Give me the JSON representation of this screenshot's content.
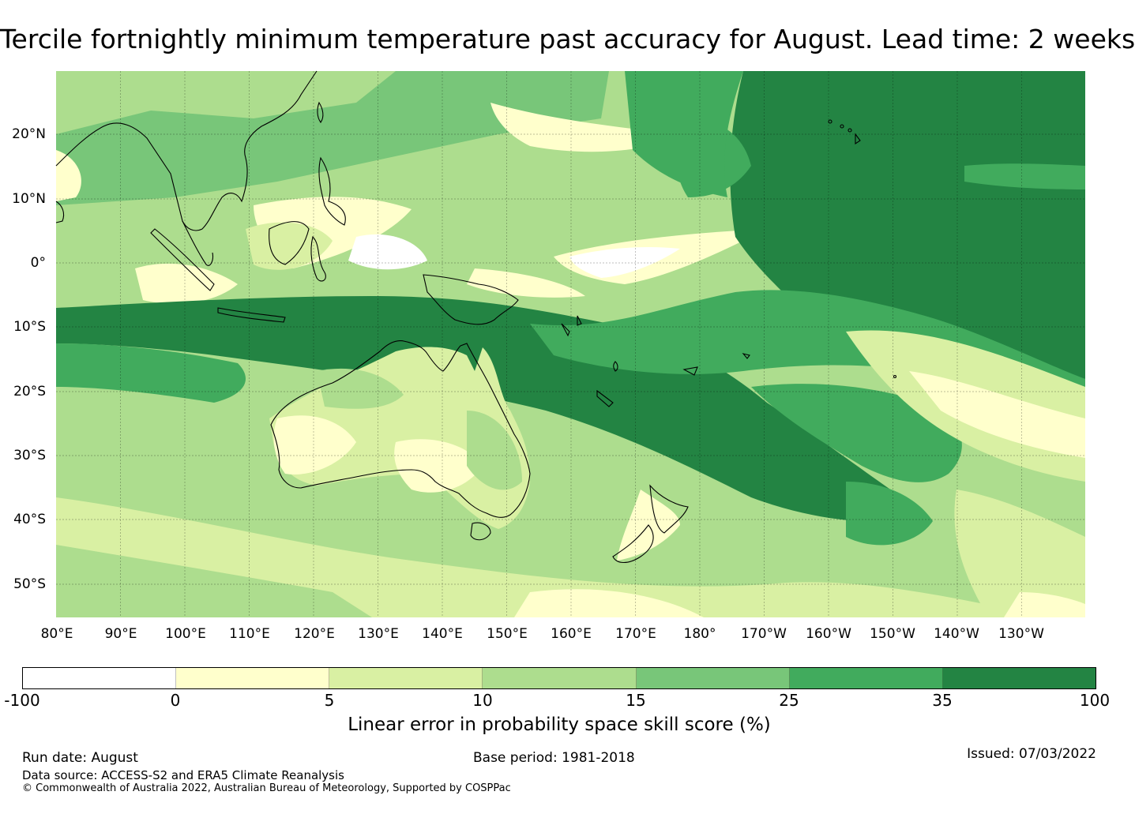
{
  "title": "Tercile fortnightly minimum temperature past accuracy for August. Lead time: 2 weeks",
  "map": {
    "projection": "plate-carree",
    "lon_range": [
      80,
      240
    ],
    "lat_range": [
      -55,
      30
    ],
    "lat_labels": [
      "20°N",
      "10°N",
      "0°",
      "10°S",
      "20°S",
      "30°S",
      "40°S",
      "50°S"
    ],
    "lon_labels": [
      "80°E",
      "90°E",
      "100°E",
      "110°E",
      "120°E",
      "130°E",
      "140°E",
      "150°E",
      "160°E",
      "170°E",
      "180°",
      "170°W",
      "160°W",
      "150°W",
      "140°W",
      "130°W"
    ],
    "gridlines": true,
    "coastline_color": "#000000"
  },
  "colorbar": {
    "ticks": [
      "-100",
      "0",
      "5",
      "10",
      "15",
      "25",
      "35",
      "100"
    ],
    "colors": [
      "#ffffff",
      "#ffffcc",
      "#d9f0a3",
      "#addd8e",
      "#78c679",
      "#41ab5d",
      "#238443"
    ],
    "label": "Linear error in probability space skill score (%)"
  },
  "footer": {
    "run_date": "Run date: August",
    "base_period": "Base period: 1981-2018",
    "issued": "Issued: 07/03/2022",
    "data_source": "Data source: ACCESS-S2 and ERA5 Climate Reanalysis",
    "copyright": "© Commonwealth of Australia 2022, Australian Bureau of Meteorology, Supported by COSPPac"
  }
}
